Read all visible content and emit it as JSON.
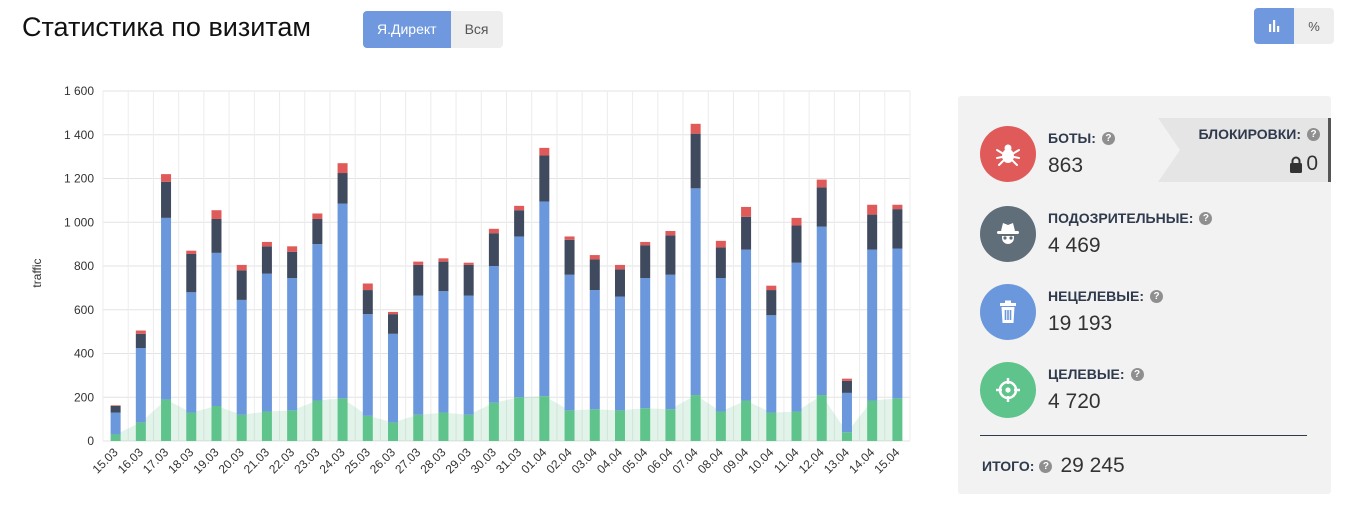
{
  "header": {
    "title": "Статистика по визитам",
    "source_tabs": [
      {
        "label": "Я.Директ",
        "active": true
      },
      {
        "label": "Вся",
        "active": false
      }
    ],
    "mode_buttons": [
      {
        "icon": "bar-chart-icon",
        "active": true
      },
      {
        "label": "%",
        "active": false
      }
    ]
  },
  "chart_data": {
    "type": "bar",
    "stacked": true,
    "ylabel": "traffic",
    "ylim": [
      0,
      1600
    ],
    "yticks": [
      "0",
      "200",
      "400",
      "600",
      "800",
      "1 000",
      "1 200",
      "1 400",
      "1 600"
    ],
    "grid": true,
    "categories": [
      "15.03",
      "16.03",
      "17.03",
      "18.03",
      "19.03",
      "20.03",
      "21.03",
      "22.03",
      "23.03",
      "24.03",
      "25.03",
      "26.03",
      "27.03",
      "28.03",
      "29.03",
      "30.03",
      "31.03",
      "01.04",
      "02.04",
      "03.04",
      "04.04",
      "05.04",
      "06.04",
      "07.04",
      "08.04",
      "09.04",
      "10.04",
      "11.04",
      "12.04",
      "13.04",
      "14.04",
      "15.04"
    ],
    "series": [
      {
        "color": "#5fc48b",
        "values": [
          30,
          85,
          190,
          130,
          160,
          120,
          135,
          140,
          185,
          195,
          115,
          85,
          120,
          130,
          120,
          175,
          200,
          205,
          140,
          145,
          140,
          150,
          145,
          210,
          135,
          185,
          130,
          135,
          210,
          40,
          185,
          195
        ]
      },
      {
        "color": "#6b97dc",
        "values": [
          100,
          340,
          830,
          550,
          700,
          525,
          630,
          605,
          715,
          890,
          465,
          405,
          545,
          555,
          545,
          625,
          735,
          890,
          620,
          545,
          520,
          595,
          615,
          945,
          610,
          690,
          445,
          680,
          770,
          180,
          690,
          685
        ]
      },
      {
        "color": "#3f4a5e",
        "values": [
          30,
          65,
          165,
          175,
          155,
          135,
          125,
          120,
          115,
          140,
          110,
          90,
          140,
          135,
          140,
          150,
          120,
          210,
          160,
          140,
          125,
          150,
          180,
          250,
          140,
          150,
          115,
          170,
          180,
          55,
          160,
          180
        ]
      },
      {
        "color": "#e05a5a",
        "values": [
          3,
          15,
          35,
          15,
          40,
          25,
          20,
          25,
          25,
          45,
          30,
          10,
          15,
          15,
          10,
          20,
          20,
          35,
          15,
          20,
          20,
          15,
          20,
          45,
          30,
          45,
          20,
          35,
          35,
          10,
          45,
          20
        ]
      }
    ]
  },
  "stats": {
    "bots": {
      "label": "БОТЫ:",
      "value": "863",
      "icon": "bug-icon",
      "color": "#e05a5a"
    },
    "blocks": {
      "label": "БЛОКИРОВКИ:",
      "value": "0",
      "icon": "lock-icon"
    },
    "suspicious": {
      "label": "ПОДОЗРИТЕЛЬНЫЕ:",
      "value": "4 469",
      "icon": "spy-icon",
      "color": "#5f6e78"
    },
    "non_target": {
      "label": "НЕЦЕЛЕВЫЕ:",
      "value": "19 193",
      "icon": "trash-icon",
      "color": "#6b97dc"
    },
    "target": {
      "label": "ЦЕЛЕВЫЕ:",
      "value": "4 720",
      "icon": "crosshair-icon",
      "color": "#5fc48b"
    },
    "total": {
      "label": "ИТОГО:",
      "value": "29 245"
    }
  }
}
